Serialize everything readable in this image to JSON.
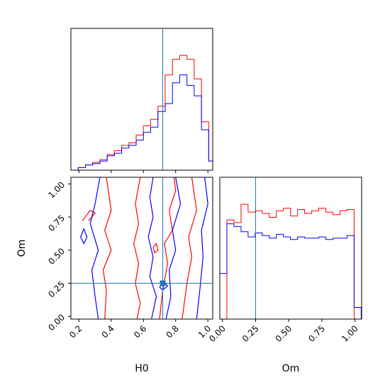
{
  "chart_data": {
    "type": "corner",
    "parameters": [
      "H0",
      "Om"
    ],
    "truth": {
      "H0": 0.72,
      "Om": 0.25
    },
    "colors": {
      "series_a": "#ff0000",
      "series_b": "#0000ff",
      "truth": "#1f77b4"
    },
    "axes": {
      "H0": {
        "label": "H0",
        "range": [
          0.15,
          1.03
        ],
        "ticks": [
          "0.2",
          "0.4",
          "0.6",
          "0.8",
          "1.0"
        ],
        "tick_values": [
          0.2,
          0.4,
          0.6,
          0.8,
          1.0
        ]
      },
      "Om": {
        "label": "Om",
        "range": [
          -0.02,
          1.05
        ],
        "ticks": [
          "0.00",
          "0.25",
          "0.50",
          "0.75",
          "1.00"
        ],
        "tick_values": [
          0.0,
          0.25,
          0.5,
          0.75,
          1.0
        ]
      }
    },
    "panels": [
      {
        "id": "hist-H0",
        "type": "step-histogram",
        "x_param": "H0",
        "bin_edges": [
          0.15,
          0.195,
          0.24,
          0.285,
          0.33,
          0.375,
          0.42,
          0.465,
          0.51,
          0.555,
          0.6,
          0.645,
          0.69,
          0.735,
          0.78,
          0.825,
          0.87,
          0.915,
          0.96,
          1.005,
          1.05
        ],
        "ymax": 1.0,
        "series": [
          {
            "color": "#ff0000",
            "counts": [
              0.0,
              0.02,
              0.04,
              0.06,
              0.08,
              0.12,
              0.15,
              0.19,
              0.21,
              0.27,
              0.34,
              0.39,
              0.49,
              0.73,
              0.85,
              0.88,
              0.85,
              0.7,
              0.37,
              0.07
            ]
          },
          {
            "color": "#0000ff",
            "counts": [
              0.0,
              0.02,
              0.04,
              0.05,
              0.07,
              0.11,
              0.13,
              0.17,
              0.19,
              0.23,
              0.29,
              0.33,
              0.45,
              0.51,
              0.67,
              0.73,
              0.65,
              0.57,
              0.31,
              0.07
            ]
          }
        ]
      },
      {
        "id": "contour-H0-Om",
        "type": "2d-contour",
        "x_param": "H0",
        "y_param": "Om",
        "series": [
          {
            "color": "#ff0000",
            "contours": [
              [
                [
                  0.36,
                  -0.02
                ],
                [
                  0.37,
                  0.2
                ],
                [
                  0.35,
                  0.35
                ],
                [
                  0.4,
                  0.5
                ],
                [
                  0.36,
                  0.65
                ],
                [
                  0.4,
                  0.8
                ],
                [
                  0.37,
                  1.05
                ]
              ],
              [
                [
                  0.58,
                  1.05
                ],
                [
                  0.55,
                  0.85
                ],
                [
                  0.57,
                  0.7
                ],
                [
                  0.54,
                  0.55
                ],
                [
                  0.57,
                  0.4
                ],
                [
                  0.55,
                  0.25
                ],
                [
                  0.58,
                  0.1
                ],
                [
                  0.56,
                  -0.02
                ]
              ],
              [
                [
                  0.22,
                  0.72
                ],
                [
                  0.27,
                  0.8
                ],
                [
                  0.3,
                  0.78
                ],
                [
                  0.26,
                  0.72
                ]
              ],
              [
                [
                  0.7,
                  -0.02
                ],
                [
                  0.72,
                  0.2
                ],
                [
                  0.75,
                  0.4
                ],
                [
                  0.73,
                  0.55
                ],
                [
                  0.78,
                  0.65
                ],
                [
                  0.76,
                  0.8
                ],
                [
                  0.8,
                  0.95
                ],
                [
                  0.79,
                  1.05
                ]
              ],
              [
                [
                  0.84,
                  -0.02
                ],
                [
                  0.87,
                  0.25
                ],
                [
                  0.9,
                  0.45
                ],
                [
                  0.88,
                  0.6
                ],
                [
                  0.93,
                  0.8
                ],
                [
                  0.9,
                  1.05
                ]
              ],
              [
                [
                  0.66,
                  0.52
                ],
                [
                  0.68,
                  0.55
                ],
                [
                  0.69,
                  0.5
                ],
                [
                  0.67,
                  0.48
                ],
                [
                  0.66,
                  0.52
                ]
              ]
            ]
          },
          {
            "color": "#0000ff",
            "contours": [
              [
                [
                  0.32,
                  -0.02
                ],
                [
                  0.3,
                  0.15
                ],
                [
                  0.28,
                  0.35
                ],
                [
                  0.32,
                  0.5
                ],
                [
                  0.27,
                  0.7
                ],
                [
                  0.3,
                  0.85
                ],
                [
                  0.33,
                  1.05
                ]
              ],
              [
                [
                  0.66,
                  1.05
                ],
                [
                  0.64,
                  0.9
                ],
                [
                  0.66,
                  0.75
                ],
                [
                  0.63,
                  0.6
                ],
                [
                  0.66,
                  0.45
                ],
                [
                  0.64,
                  0.3
                ],
                [
                  0.68,
                  0.15
                ],
                [
                  0.65,
                  -0.02
                ]
              ],
              [
                [
                  0.21,
                  0.6
                ],
                [
                  0.23,
                  0.66
                ],
                [
                  0.25,
                  0.6
                ],
                [
                  0.23,
                  0.55
                ],
                [
                  0.21,
                  0.6
                ]
              ],
              [
                [
                  0.74,
                  -0.02
                ],
                [
                  0.77,
                  0.15
                ],
                [
                  0.76,
                  0.35
                ],
                [
                  0.8,
                  0.5
                ],
                [
                  0.78,
                  0.65
                ],
                [
                  0.83,
                  0.85
                ],
                [
                  0.8,
                  1.05
                ]
              ],
              [
                [
                  0.93,
                  -0.02
                ],
                [
                  0.95,
                  0.2
                ],
                [
                  0.97,
                  0.45
                ],
                [
                  0.96,
                  0.65
                ],
                [
                  1.0,
                  0.85
                ],
                [
                  0.98,
                  1.05
                ]
              ],
              [
                [
                  0.7,
                  0.22
                ],
                [
                  0.73,
                  0.26
                ],
                [
                  0.75,
                  0.23
                ],
                [
                  0.72,
                  0.2
                ],
                [
                  0.7,
                  0.22
                ]
              ]
            ]
          }
        ]
      },
      {
        "id": "hist-Om",
        "type": "step-histogram",
        "x_param": "Om",
        "bin_edges": [
          -0.02,
          0.0333,
          0.0867,
          0.14,
          0.1933,
          0.2467,
          0.3,
          0.3533,
          0.4067,
          0.46,
          0.5133,
          0.5667,
          0.62,
          0.6733,
          0.7267,
          0.78,
          0.8333,
          0.8867,
          0.94,
          0.9933,
          1.0467
        ],
        "ymax": 1.0,
        "series": [
          {
            "color": "#ff0000",
            "counts": [
              0.0,
              0.76,
              0.74,
              0.88,
              0.82,
              0.83,
              0.81,
              0.78,
              0.83,
              0.85,
              0.79,
              0.84,
              0.81,
              0.83,
              0.85,
              0.82,
              0.8,
              0.83,
              0.84,
              0.0
            ]
          },
          {
            "color": "#0000ff",
            "counts": [
              0.35,
              0.73,
              0.71,
              0.67,
              0.63,
              0.66,
              0.64,
              0.62,
              0.65,
              0.63,
              0.61,
              0.63,
              0.62,
              0.62,
              0.63,
              0.61,
              0.62,
              0.62,
              0.64,
              0.09
            ]
          }
        ]
      }
    ]
  }
}
